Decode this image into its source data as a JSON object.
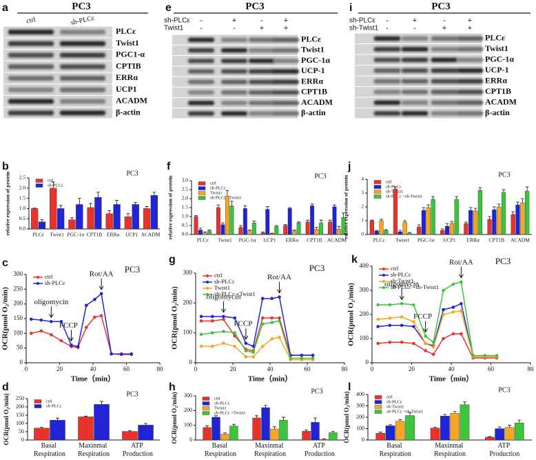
{
  "blots": [
    {
      "panel": "a",
      "title": "PC3",
      "columns": [
        "ctrl",
        "sh-PLCε"
      ],
      "proteins": [
        "PLCε",
        "Twist1",
        "PGC1-α",
        "CPTIB",
        "ERRα",
        "UCP1",
        "ACADM",
        "β-actin"
      ]
    },
    {
      "panel": "e",
      "title": "PC3",
      "conditions": [
        {
          "name": "sh-PLCε",
          "signs": [
            "-",
            "+",
            "-",
            "+"
          ]
        },
        {
          "name": "Twist1",
          "signs": [
            "-",
            "-",
            "+",
            "+"
          ]
        }
      ],
      "proteins": [
        "PLCε",
        "Twist1",
        "PGC-1α",
        "UCP-1",
        "ERRα",
        "CPT1B",
        "ACADM",
        "β-actin"
      ]
    },
    {
      "panel": "i",
      "title": "PC3",
      "conditions": [
        {
          "name": "sh-PLCε",
          "signs": [
            "-",
            "+",
            "-",
            "+"
          ]
        },
        {
          "name": "sh-Twist1",
          "signs": [
            "-",
            "-",
            "+",
            "+"
          ]
        }
      ],
      "proteins": [
        "PLCε",
        "Twist1",
        "PGC-1α",
        "UCP-1",
        "ERRα",
        "CPT1B",
        "ACADM",
        "β-actin"
      ]
    }
  ],
  "chart_data": [
    {
      "type": "bar",
      "panel": "b",
      "title": "PC3",
      "ylabel": "relative expression of protein",
      "legend": "upper left",
      "categories": [
        "PLCε",
        "Twist1",
        "PGC-1α",
        "CPT1B",
        "ERRα",
        "UCP1",
        "ACADM"
      ],
      "ylim": [
        0,
        2.5
      ],
      "yticks": [
        {
          "value": 0,
          "label": "0.0"
        },
        {
          "value": 0.5,
          "label": "0.5"
        },
        {
          "value": 1,
          "label": "1.0"
        },
        {
          "value": 1.5,
          "label": "1.5"
        },
        {
          "value": 2,
          "label": "2.0"
        },
        {
          "value": 2.5,
          "label": "2.5"
        }
      ],
      "series": [
        {
          "name": "ctrl",
          "color": "#e8332b",
          "values": [
            1,
            2.0,
            0.45,
            1.05,
            0.75,
            0.6,
            1.0
          ],
          "errors": [
            0.02,
            0.3,
            0.1,
            0.2,
            0.15,
            0.15,
            0.1
          ]
        },
        {
          "name": "sh-PLCε",
          "color": "#2024d4",
          "values": [
            0.35,
            1.0,
            1.2,
            1.55,
            1.2,
            1.2,
            1.65
          ],
          "errors": [
            0.1,
            0.15,
            0.3,
            0.25,
            0.2,
            0.1,
            0.15
          ]
        }
      ]
    },
    {
      "type": "bar",
      "panel": "f",
      "title": "PC3",
      "ylabel": "relative expression of protein",
      "legend": "upper left",
      "categories": [
        "PLCε",
        "Twist1",
        "PGC-1α",
        "UCP1",
        "ERRα",
        "CPT1B",
        "ACADM"
      ],
      "ylim": [
        0,
        3
      ],
      "yticks": [
        {
          "value": 0,
          "label": "0.0"
        },
        {
          "value": 0.5,
          "label": "0.5"
        },
        {
          "value": 1,
          "label": "1.0"
        },
        {
          "value": 1.5,
          "label": "1.5"
        },
        {
          "value": 2,
          "label": "2.0"
        },
        {
          "value": 2.5,
          "label": "2.5"
        },
        {
          "value": 3,
          "label": "3.0"
        }
      ],
      "series": [
        {
          "name": "ctrl",
          "color": "#e8332b",
          "values": [
            1.0,
            1.5,
            0.4,
            0.1,
            0.5,
            0.7,
            0.7
          ],
          "errors": [
            0.05,
            0.15,
            0.1,
            0.05,
            0.05,
            0.1,
            0.1
          ]
        },
        {
          "name": "sh-PLCε",
          "color": "#2024d4",
          "values": [
            0.25,
            0.55,
            1.45,
            1.4,
            1.45,
            1.6,
            1.55
          ],
          "errors": [
            0.1,
            0.1,
            0.15,
            0.15,
            0.05,
            0.1,
            0.1
          ]
        },
        {
          "name": "Twist1",
          "color": "#f5a623",
          "values": [
            0.1,
            2.15,
            0.2,
            0.05,
            0.2,
            0.3,
            0.3
          ],
          "errors": [
            0.05,
            0.3,
            0.05,
            0.02,
            0.05,
            0.1,
            0.15
          ]
        },
        {
          "name": "sh-PLCε +Twist1",
          "color": "#3dc43d",
          "values": [
            0.2,
            1.6,
            0.65,
            0.45,
            0.65,
            0.65,
            0.95
          ],
          "errors": [
            0.05,
            0.25,
            0.1,
            0.05,
            0.05,
            0.15,
            0.25
          ]
        }
      ]
    },
    {
      "type": "bar",
      "panel": "j",
      "title": "PC3",
      "ylabel": "relative expression of protein",
      "legend": "upper left",
      "categories": [
        "PLCε",
        "Twist1",
        "PGC-1α",
        "UCP1",
        "ERRα",
        "CPT1B",
        "ACADM"
      ],
      "ylim": [
        0,
        4
      ],
      "yticks": [
        0,
        1,
        2,
        3,
        4
      ],
      "series": [
        {
          "name": "ctrl",
          "color": "#e8332b",
          "values": [
            1.0,
            3.3,
            0.55,
            0.3,
            0.8,
            1.1,
            1.45
          ],
          "errors": [
            0.05,
            0.15,
            0.15,
            0.1,
            0.1,
            0.2,
            0.2
          ]
        },
        {
          "name": "sh-PLCε",
          "color": "#2024d4",
          "values": [
            0.25,
            0.2,
            1.75,
            0.6,
            1.75,
            1.8,
            2.15
          ],
          "errors": [
            0.05,
            0.1,
            0.2,
            0.2,
            0.2,
            0.2,
            0.2
          ]
        },
        {
          "name": "sh-Twist1",
          "color": "#f5a623",
          "values": [
            1.0,
            0.9,
            1.95,
            0.8,
            1.7,
            2.0,
            2.3
          ],
          "errors": [
            0.1,
            0.1,
            0.2,
            0.15,
            0.2,
            0.2,
            0.3
          ]
        },
        {
          "name": "sh-PLCε +sh-Twist1",
          "color": "#3dc43d",
          "values": [
            0.3,
            0.1,
            2.55,
            2.55,
            3.2,
            3.05,
            3.15
          ],
          "errors": [
            0.05,
            0.05,
            0.2,
            0.2,
            0.2,
            0.2,
            0.3
          ]
        }
      ]
    },
    {
      "type": "line",
      "panel": "c",
      "title": "PC3",
      "ylabel": "OCR(pmol O₂/min)",
      "xlabel": "Time（min）",
      "legend": "upper left",
      "annotations": [
        "oligomycin",
        "FCCP",
        "Rot/AA"
      ],
      "x": [
        3,
        9,
        15,
        21,
        27,
        31,
        36,
        41,
        45,
        51,
        57,
        63
      ],
      "xlim": [
        0,
        80
      ],
      "xticks": [
        0,
        20,
        40,
        60,
        80
      ],
      "ylim": [
        0,
        300
      ],
      "yticks": [
        0,
        50,
        100,
        150,
        200,
        250,
        300
      ],
      "series": [
        {
          "name": "ctrl",
          "color": "#e8332b",
          "values": [
            100,
            108,
            95,
            75,
            55,
            52,
            120,
            155,
            160,
            30,
            28,
            28
          ]
        },
        {
          "name": "sh-PLCε",
          "color": "#2024d4",
          "values": [
            148,
            145,
            140,
            140,
            60,
            55,
            195,
            215,
            235,
            30,
            30,
            30
          ]
        }
      ]
    },
    {
      "type": "line",
      "panel": "g",
      "title": "PC3",
      "ylabel": "OCR(pmol O₂/min)",
      "xlabel": "Time（min）",
      "legend": "upper left",
      "annotations": [
        "oligomycin",
        "FCCP",
        "Rot/AA"
      ],
      "x": [
        3,
        9,
        15,
        21,
        27,
        31,
        36,
        41,
        45,
        51,
        57,
        63
      ],
      "xlim": [
        0,
        80
      ],
      "xticks": [
        0,
        20,
        40,
        60,
        80
      ],
      "ylim": [
        0,
        300
      ],
      "yticks": [
        0,
        100,
        200,
        300
      ],
      "series": [
        {
          "name": "ctrl",
          "color": "#e8332b",
          "values": [
            140,
            140,
            145,
            90,
            45,
            40,
            150,
            150,
            150,
            25,
            25,
            25
          ]
        },
        {
          "name": "sh-PLCε",
          "color": "#2024d4",
          "values": [
            155,
            155,
            155,
            150,
            65,
            55,
            215,
            215,
            220,
            25,
            25,
            25
          ]
        },
        {
          "name": "Twist1",
          "color": "#f5a623",
          "values": [
            55,
            55,
            65,
            55,
            20,
            20,
            55,
            80,
            85,
            10,
            10,
            10
          ]
        },
        {
          "name": "sh-PLCε +Twist1",
          "color": "#3dc43d",
          "values": [
            95,
            100,
            105,
            100,
            40,
            35,
            130,
            135,
            140,
            15,
            15,
            15
          ]
        }
      ]
    },
    {
      "type": "line",
      "panel": "k",
      "title": "PC3",
      "ylabel": "OCR(pmol O₂/min)",
      "xlabel": "Time（min）",
      "legend": "upper left",
      "annotations": [
        "oligomycin",
        "FCCP",
        "Rot/AA"
      ],
      "x": [
        3,
        9,
        15,
        21,
        27,
        31,
        36,
        41,
        45,
        51,
        57,
        63
      ],
      "xlim": [
        0,
        80
      ],
      "xticks": [
        0,
        20,
        40,
        60,
        80
      ],
      "ylim": [
        0,
        400
      ],
      "yticks": [
        0,
        100,
        200,
        300,
        400
      ],
      "series": [
        {
          "name": "ctrl",
          "color": "#e8332b",
          "values": [
            80,
            85,
            85,
            80,
            50,
            35,
            100,
            120,
            120,
            20,
            20,
            20
          ]
        },
        {
          "name": "sh-PLCε",
          "color": "#2024d4",
          "values": [
            150,
            155,
            155,
            150,
            80,
            70,
            220,
            230,
            245,
            25,
            25,
            25
          ]
        },
        {
          "name": "sh-Twist1",
          "color": "#f5a623",
          "values": [
            180,
            185,
            190,
            170,
            80,
            65,
            200,
            210,
            215,
            25,
            25,
            25
          ]
        },
        {
          "name": "sh-PLCε +sh-Twist1",
          "color": "#3dc43d",
          "values": [
            240,
            240,
            245,
            240,
            110,
            85,
            300,
            325,
            335,
            30,
            30,
            30
          ]
        }
      ]
    },
    {
      "type": "bar",
      "panel": "d",
      "title": "PC3",
      "ylabel": "OCR(pmol O₂/min)",
      "legend": "upper left",
      "categories": [
        "Basal Respiration",
        "Maxinmal Respiration",
        "ATP Production"
      ],
      "ylim": [
        0,
        250
      ],
      "yticks": [
        0,
        50,
        100,
        150,
        200,
        250
      ],
      "series": [
        {
          "name": "ctrl",
          "color": "#e8332b",
          "values": [
            72,
            140,
            52
          ],
          "errors": [
            5,
            4,
            5
          ]
        },
        {
          "name": "sh-PLCε",
          "color": "#2024d4",
          "values": [
            120,
            215,
            90
          ],
          "errors": [
            12,
            18,
            10
          ]
        }
      ]
    },
    {
      "type": "bar",
      "panel": "h",
      "title": "PC3",
      "ylabel": "OCR(pmol O₂/min)",
      "legend": "upper left",
      "categories": [
        "Basal Respiration",
        "Maxinmal Respiration",
        "ATP Production"
      ],
      "ylim": [
        0,
        300
      ],
      "yticks": [
        0,
        100,
        200,
        300
      ],
      "series": [
        {
          "name": "ctrl",
          "color": "#e8332b",
          "values": [
            85,
            150,
            60
          ],
          "errors": [
            12,
            15,
            8
          ]
        },
        {
          "name": "sh-PLCε",
          "color": "#2024d4",
          "values": [
            155,
            220,
            120
          ],
          "errors": [
            10,
            15,
            30
          ]
        },
        {
          "name": "Twist1",
          "color": "#f5a623",
          "values": [
            40,
            75,
            5
          ],
          "errors": [
            8,
            15,
            3
          ]
        },
        {
          "name": "sh-PLCε +Twist1",
          "color": "#3dc43d",
          "values": [
            95,
            135,
            50
          ],
          "errors": [
            12,
            20,
            8
          ]
        }
      ]
    },
    {
      "type": "bar",
      "panel": "l",
      "title": "PC3",
      "ylabel": "OCR(pmol O₂/min)",
      "legend": "upper left",
      "categories": [
        "Basal Respiration",
        "Maxinmal Respiration",
        "ATP Production"
      ],
      "ylim": [
        0,
        400
      ],
      "yticks": [
        0,
        100,
        200,
        300,
        400
      ],
      "series": [
        {
          "name": "ctrl",
          "color": "#e8332b",
          "values": [
            60,
            105,
            25
          ],
          "errors": [
            10,
            8,
            5
          ]
        },
        {
          "name": "sh-PLCε",
          "color": "#2024d4",
          "values": [
            125,
            210,
            100
          ],
          "errors": [
            10,
            15,
            15
          ]
        },
        {
          "name": "sh-Twist1",
          "color": "#f5a623",
          "values": [
            165,
            235,
            110
          ],
          "errors": [
            15,
            15,
            20
          ]
        },
        {
          "name": "sh-PLCε +sh-Twist1",
          "color": "#3dc43d",
          "values": [
            215,
            310,
            150
          ],
          "errors": [
            25,
            25,
            25
          ]
        }
      ]
    }
  ]
}
